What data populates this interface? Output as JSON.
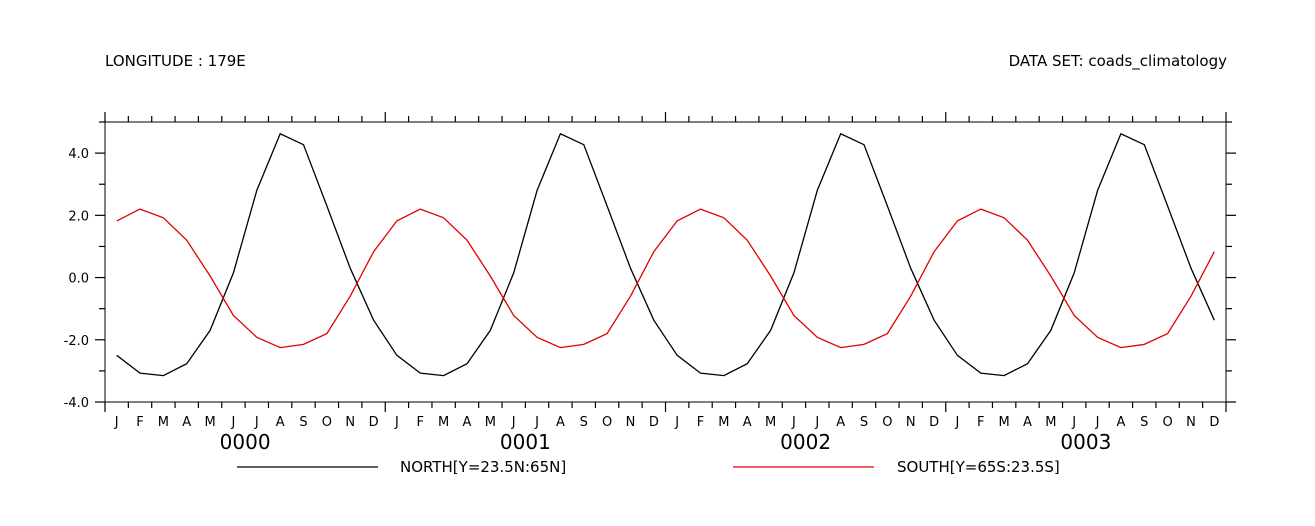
{
  "header": {
    "left": "LONGITUDE : 179E",
    "right": "DATA SET: coads_climatology"
  },
  "chart_data": {
    "type": "line",
    "y_ticks": [
      "4.0",
      "2.0",
      "0.0",
      "-2.0",
      "-4.0"
    ],
    "ylim": [
      -4,
      5
    ],
    "month_labels": [
      "J",
      "F",
      "M",
      "A",
      "M",
      "J",
      "J",
      "A",
      "S",
      "O",
      "N",
      "D"
    ],
    "year_labels": [
      "0000",
      "0001",
      "0002",
      "0003"
    ],
    "x": [
      "0000-01",
      "0000-02",
      "0000-03",
      "0000-04",
      "0000-05",
      "0000-06",
      "0000-07",
      "0000-08",
      "0000-09",
      "0000-10",
      "0000-11",
      "0000-12",
      "0001-01",
      "0001-02",
      "0001-03",
      "0001-04",
      "0001-05",
      "0001-06",
      "0001-07",
      "0001-08",
      "0001-09",
      "0001-10",
      "0001-11",
      "0001-12",
      "0002-01",
      "0002-02",
      "0002-03",
      "0002-04",
      "0002-05",
      "0002-06",
      "0002-07",
      "0002-08",
      "0002-09",
      "0002-10",
      "0002-11",
      "0002-12",
      "0003-01",
      "0003-02",
      "0003-03",
      "0003-04",
      "0003-05",
      "0003-06",
      "0003-07",
      "0003-08",
      "0003-09",
      "0003-10",
      "0003-11",
      "0003-12"
    ],
    "series": [
      {
        "name": "NORTH[Y=23.5N:65N]",
        "color": "#000000",
        "values": [
          -2.5,
          -3.07,
          -3.15,
          -2.77,
          -1.7,
          0.15,
          2.8,
          4.62,
          4.27,
          2.3,
          0.3,
          -1.37,
          -2.5,
          -3.07,
          -3.15,
          -2.77,
          -1.7,
          0.15,
          2.8,
          4.62,
          4.27,
          2.3,
          0.3,
          -1.37,
          -2.5,
          -3.07,
          -3.15,
          -2.77,
          -1.7,
          0.15,
          2.8,
          4.62,
          4.27,
          2.3,
          0.3,
          -1.37,
          -2.5,
          -3.07,
          -3.15,
          -2.77,
          -1.7,
          0.15,
          2.8,
          4.62,
          4.27,
          2.3,
          0.3,
          -1.37
        ]
      },
      {
        "name": "SOUTH[Y=65S:23.5S]",
        "color": "#e00000",
        "values": [
          1.82,
          2.2,
          1.92,
          1.2,
          0.05,
          -1.22,
          -1.92,
          -2.25,
          -2.15,
          -1.8,
          -0.6,
          0.83,
          1.82,
          2.2,
          1.92,
          1.2,
          0.05,
          -1.22,
          -1.92,
          -2.25,
          -2.15,
          -1.8,
          -0.6,
          0.83,
          1.82,
          2.2,
          1.92,
          1.2,
          0.05,
          -1.22,
          -1.92,
          -2.25,
          -2.15,
          -1.8,
          -0.6,
          0.83,
          1.82,
          2.2,
          1.92,
          1.2,
          0.05,
          -1.22,
          -1.92,
          -2.25,
          -2.15,
          -1.8,
          -0.6,
          0.83
        ]
      }
    ],
    "grid": false,
    "legend_position": "bottom"
  }
}
